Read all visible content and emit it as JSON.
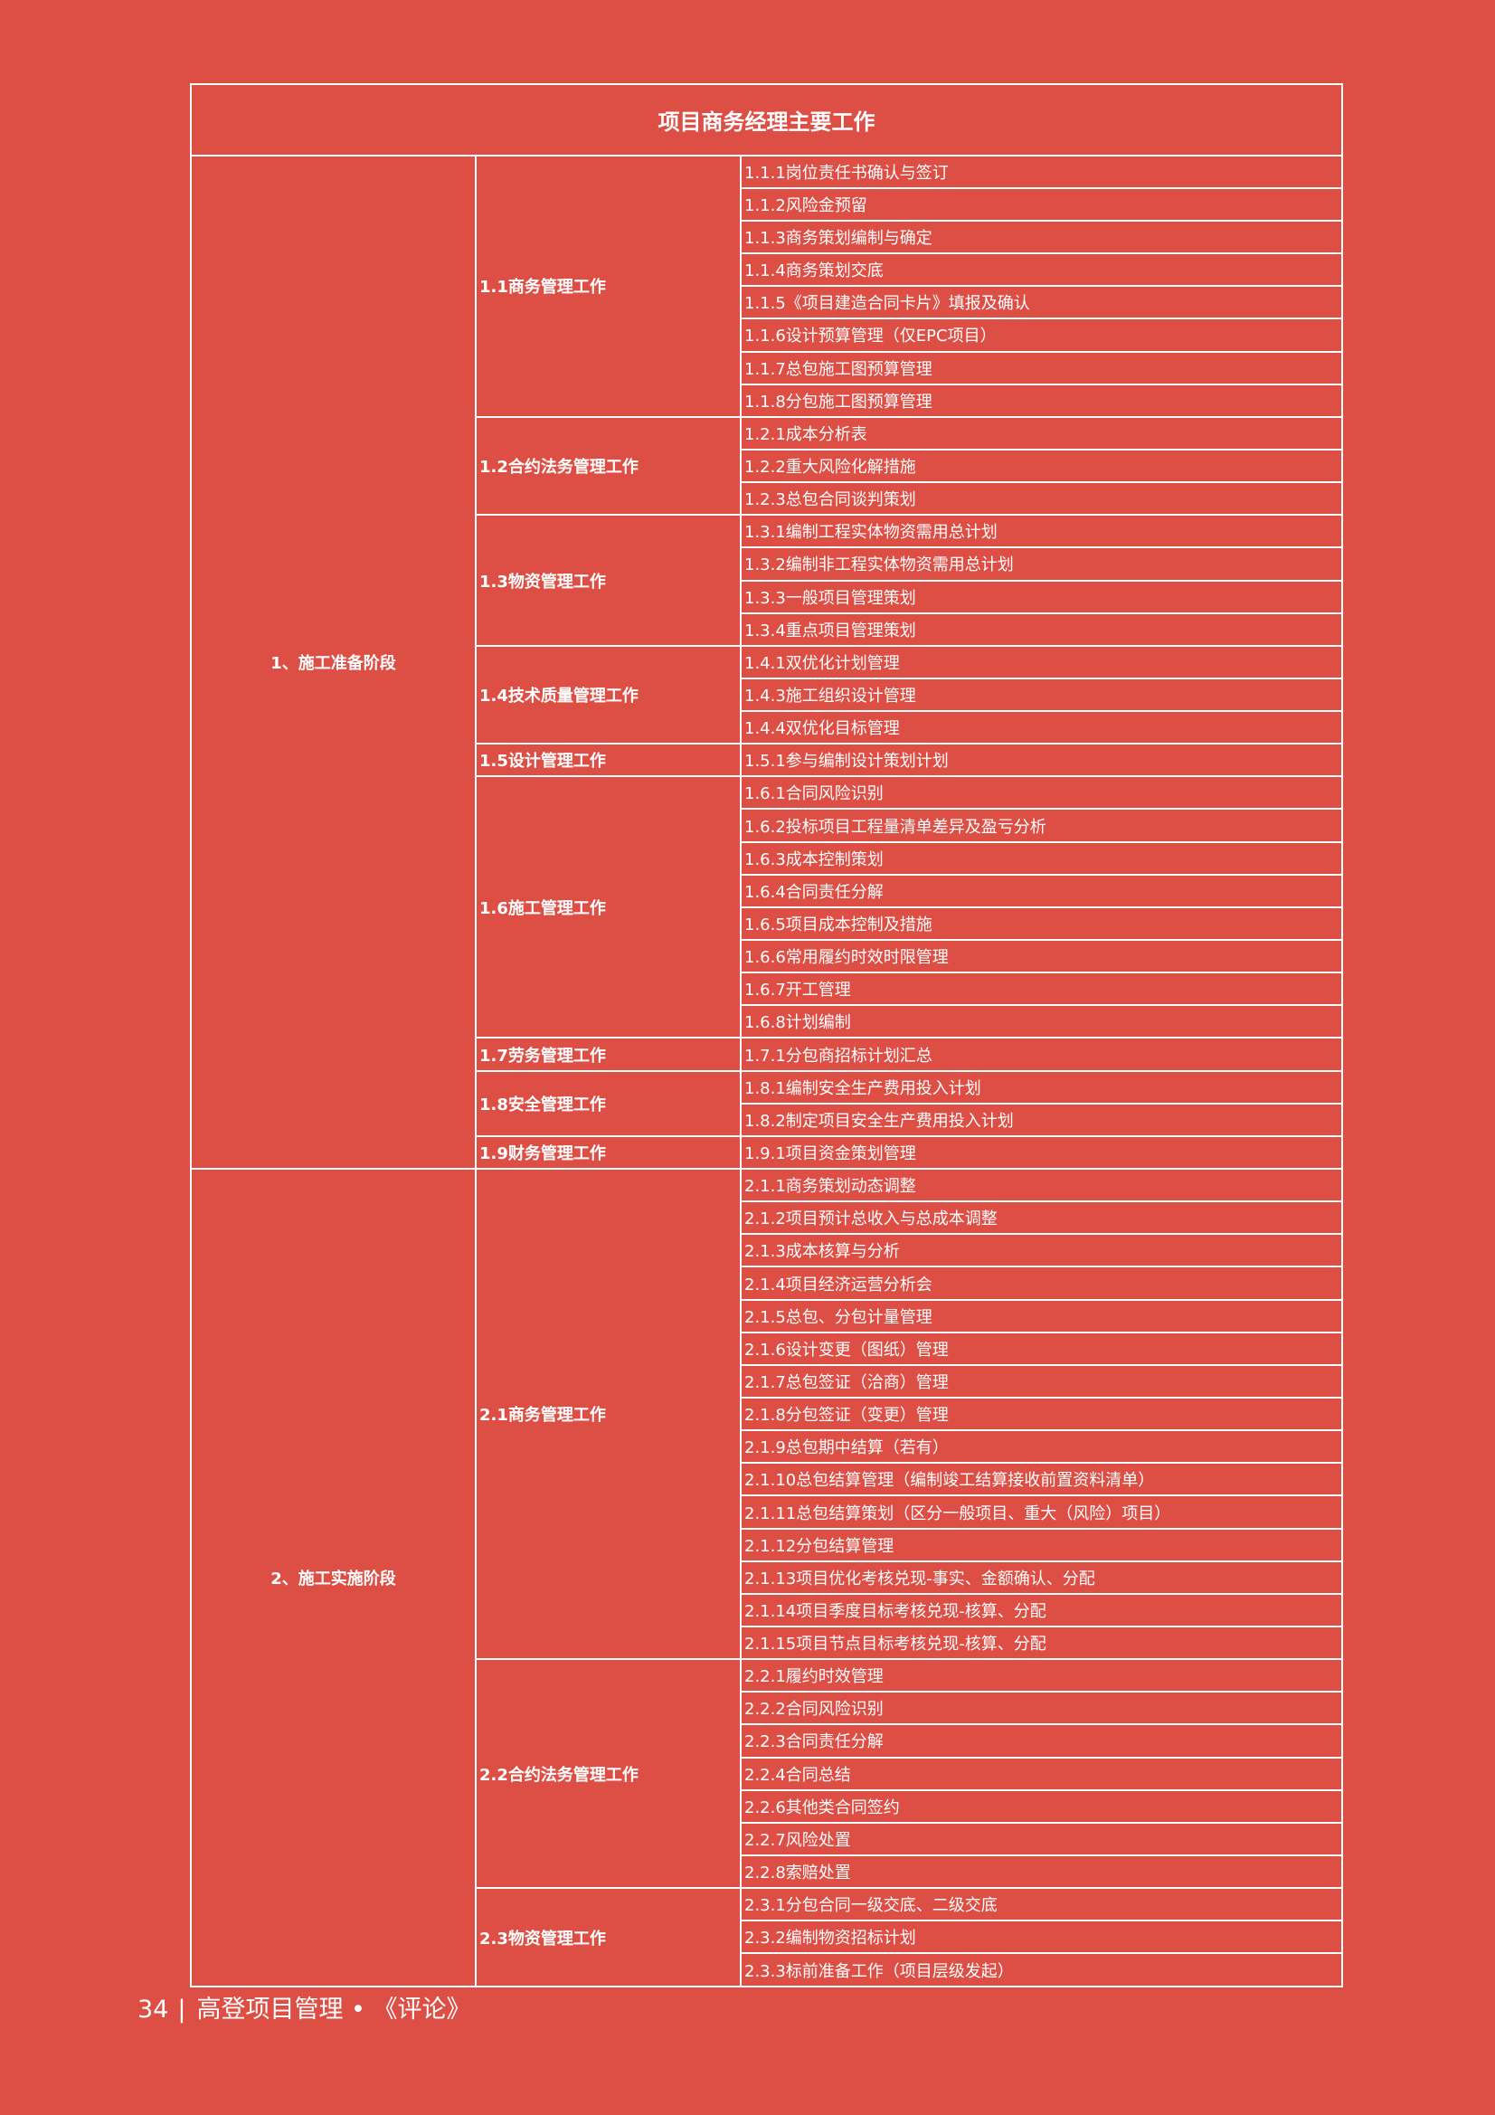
{
  "title": "项目商务经理主要工作",
  "phases": [
    {
      "name": "1、施工准备阶段",
      "categories": [
        {
          "name": "1.1商务管理工作",
          "items": [
            "1.1.1岗位责任书确认与签订",
            "1.1.2风险金预留",
            "1.1.3商务策划编制与确定",
            "1.1.4商务策划交底",
            "1.1.5《项目建造合同卡片》填报及确认",
            "1.1.6设计预算管理（仅EPC项目）",
            "1.1.7总包施工图预算管理",
            "1.1.8分包施工图预算管理"
          ]
        },
        {
          "name": "1.2合约法务管理工作",
          "items": [
            "1.2.1成本分析表",
            "1.2.2重大风险化解措施",
            "1.2.3总包合同谈判策划"
          ]
        },
        {
          "name": "1.3物资管理工作",
          "items": [
            "1.3.1编制工程实体物资需用总计划",
            "1.3.2编制非工程实体物资需用总计划",
            "1.3.3一般项目管理策划",
            "1.3.4重点项目管理策划"
          ]
        },
        {
          "name": "1.4技术质量管理工作",
          "items": [
            "1.4.1双优化计划管理",
            "1.4.3施工组织设计管理",
            "1.4.4双优化目标管理"
          ]
        },
        {
          "name": "1.5设计管理工作",
          "items": [
            "1.5.1参与编制设计策划计划"
          ]
        },
        {
          "name": "1.6施工管理工作",
          "items": [
            "1.6.1合同风险识别",
            "1.6.2投标项目工程量清单差异及盈亏分析",
            "1.6.3成本控制策划",
            "1.6.4合同责任分解",
            "1.6.5项目成本控制及措施",
            "1.6.6常用履约时效时限管理",
            "1.6.7开工管理",
            "1.6.8计划编制"
          ]
        },
        {
          "name": "1.7劳务管理工作",
          "items": [
            "1.7.1分包商招标计划汇总"
          ]
        },
        {
          "name": "1.8安全管理工作",
          "items": [
            "1.8.1编制安全生产费用投入计划",
            "1.8.2制定项目安全生产费用投入计划"
          ]
        },
        {
          "name": "1.9财务管理工作",
          "items": [
            "1.9.1项目资金策划管理"
          ]
        }
      ]
    },
    {
      "name": "2、施工实施阶段",
      "categories": [
        {
          "name": "2.1商务管理工作",
          "items": [
            "2.1.1商务策划动态调整",
            "2.1.2项目预计总收入与总成本调整",
            "2.1.3成本核算与分析",
            "2.1.4项目经济运营分析会",
            "2.1.5总包、分包计量管理",
            "2.1.6设计变更（图纸）管理",
            "2.1.7总包签证（洽商）管理",
            "2.1.8分包签证（变更）管理",
            "2.1.9总包期中结算（若有）",
            "2.1.10总包结算管理（编制竣工结算接收前置资料清单）",
            "2.1.11总包结算策划（区分一般项目、重大（风险）项目）",
            "2.1.12分包结算管理",
            "2.1.13项目优化考核兑现-事实、金额确认、分配",
            "2.1.14项目季度目标考核兑现-核算、分配",
            "2.1.15项目节点目标考核兑现-核算、分配"
          ]
        },
        {
          "name": "2.2合约法务管理工作",
          "items": [
            "2.2.1履约时效管理",
            "2.2.2合同风险识别",
            "2.2.3合同责任分解",
            "2.2.4合同总结",
            "2.2.6其他类合同签约",
            "2.2.7风险处置",
            "2.2.8索赔处置"
          ]
        },
        {
          "name": "2.3物资管理工作",
          "items": [
            "2.3.1分包合同一级交底、二级交底",
            "2.3.2编制物资招标计划",
            "2.3.3标前准备工作（项目层级发起）"
          ]
        }
      ]
    }
  ],
  "footer": {
    "page_number": "34",
    "separator": "|",
    "publication": "高登项目管理 • 《评论》"
  },
  "colors": {
    "background": "#dd4e44",
    "text": "#ffffff",
    "lines": "#ffffff"
  }
}
